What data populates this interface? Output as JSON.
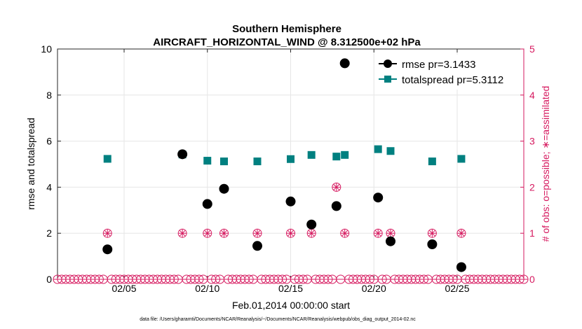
{
  "chart_data": {
    "type": "scatter",
    "title_line1": "Southern Hemisphere",
    "title_line2": "AIRCRAFT_HORIZONTAL_WIND @ 8.312500e+02 hPa",
    "xlabel": "Feb.01,2014 00:00:00 start",
    "ylabel_left": "rmse and totalspread",
    "ylabel_right": "# of obs: o=possible; ∗=assimilated",
    "footnote": "data file: /Users/gharamti/Documents/NCAR/Reanalysis/~/Documents/NCAR/Reanalysis/webpub/obs_diag_output_2014-02.nc",
    "xlim": [
      1,
      29
    ],
    "ylim_left": [
      0,
      10
    ],
    "ylim_right": [
      0,
      5
    ],
    "x_ticks": [
      5,
      10,
      15,
      20,
      25
    ],
    "x_tick_labels": [
      "02/05",
      "02/10",
      "02/15",
      "02/20",
      "02/25"
    ],
    "y_ticks_left": [
      0,
      2,
      4,
      6,
      8,
      10
    ],
    "y_tick_labels_left": [
      "0",
      "2",
      "4",
      "6",
      "8",
      "10"
    ],
    "y_ticks_right": [
      0,
      1,
      2,
      3,
      4,
      5
    ],
    "y_tick_labels_right": [
      "0",
      "1",
      "2",
      "3",
      "4",
      "5"
    ],
    "legend": {
      "position": "top-right",
      "entries": [
        "rmse pr=3.1433",
        "totalspread pr=5.3112"
      ]
    },
    "colors": {
      "rmse": "#000000",
      "totalspread": "#008080",
      "obs": "#d6195f",
      "grid": "#e6e6e6",
      "axis": "#262626"
    },
    "series": [
      {
        "name": "rmse",
        "x": [
          4.0,
          8.5,
          10.0,
          11.0,
          13.0,
          15.0,
          16.25,
          17.75,
          18.25,
          20.25,
          21.0,
          23.5,
          25.25
        ],
        "values": [
          1.3,
          5.43,
          3.27,
          3.93,
          1.45,
          3.38,
          2.38,
          3.18,
          9.38,
          3.55,
          1.65,
          1.52,
          0.53
        ]
      },
      {
        "name": "totalspread",
        "x": [
          4.0,
          8.5,
          10.0,
          11.0,
          13.0,
          15.0,
          16.25,
          17.75,
          18.25,
          20.25,
          21.0,
          23.5,
          25.25
        ],
        "values": [
          5.23,
          5.42,
          5.15,
          5.12,
          5.12,
          5.22,
          5.4,
          5.33,
          5.4,
          5.65,
          5.57,
          5.12,
          5.23
        ]
      },
      {
        "name": "obs_possible",
        "x": [
          4.0,
          8.5,
          10.0,
          11.0,
          13.0,
          15.0,
          16.25,
          17.75,
          18.25,
          20.25,
          21.0,
          23.5,
          25.25
        ],
        "values": [
          1,
          1,
          1,
          1,
          1,
          1,
          1,
          2,
          1,
          1,
          1,
          1,
          1
        ]
      },
      {
        "name": "obs_assimilated",
        "x": [
          4.0,
          8.5,
          10.0,
          11.0,
          13.0,
          15.0,
          16.25,
          17.75,
          18.25,
          20.25,
          21.0,
          23.5,
          25.25
        ],
        "values": [
          1,
          1,
          1,
          1,
          1,
          1,
          1,
          2,
          1,
          1,
          1,
          1,
          1
        ]
      }
    ],
    "zero_obs_spacing_days": 0.25
  }
}
